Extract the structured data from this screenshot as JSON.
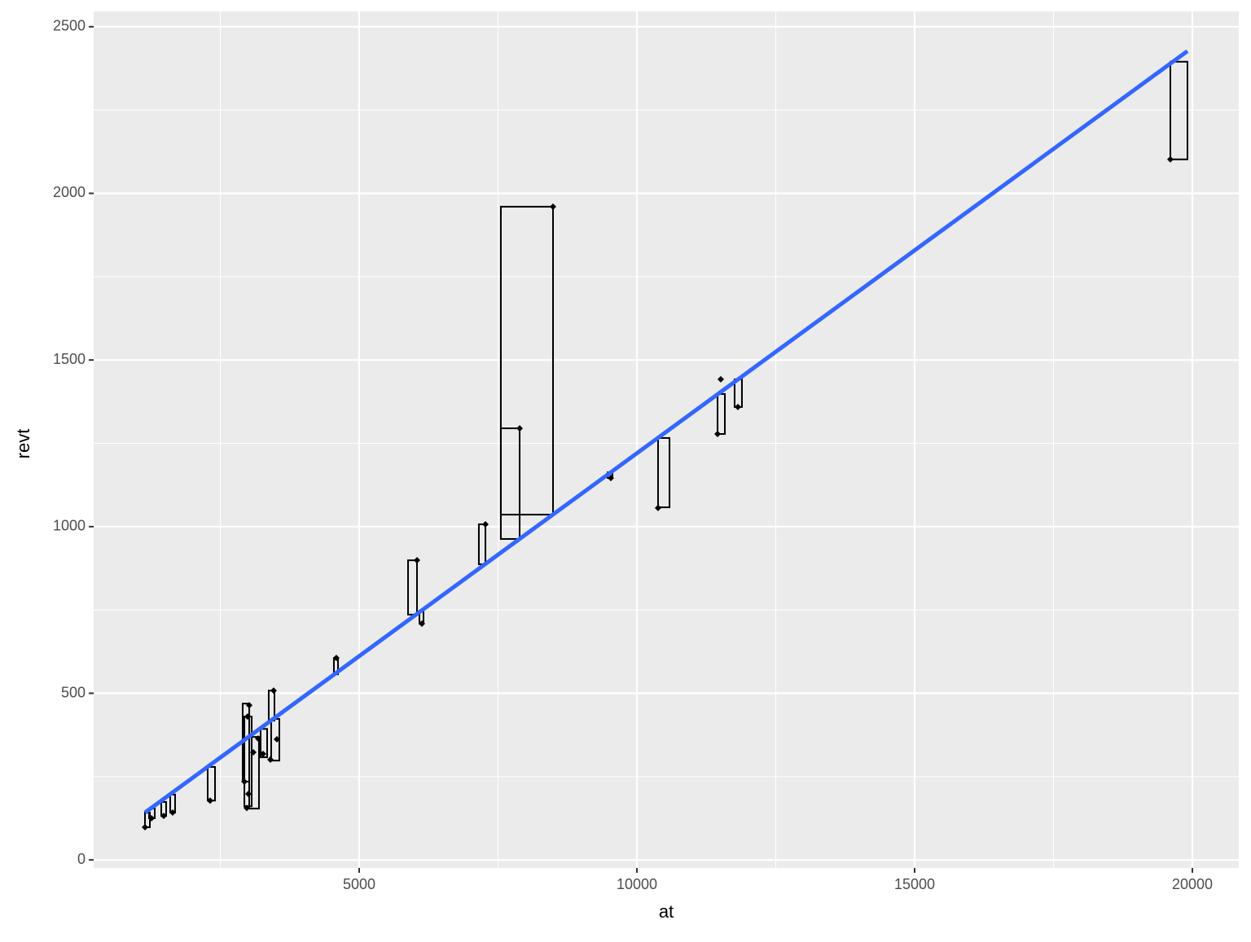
{
  "chart_data": {
    "type": "rect-scatter",
    "x_label": "at",
    "y_label": "revt",
    "xlim": [
      220,
      20836
    ],
    "ylim": [
      -24,
      2546
    ],
    "xticks": [
      5000,
      10000,
      15000,
      20000
    ],
    "yticks": [
      0,
      500,
      1000,
      1500,
      2000,
      2500
    ],
    "grid": true,
    "rect_color": "#000000",
    "point_color": "#000000",
    "line_color": "#3366ff",
    "rects": [
      {
        "xmin": 7551,
        "xmax": 8490,
        "ymin": 1036,
        "ymax": 1960
      },
      {
        "xmin": 7551,
        "xmax": 7889,
        "ymin": 963,
        "ymax": 1295
      },
      {
        "xmin": 19604,
        "xmax": 19912,
        "ymin": 2102,
        "ymax": 2395
      },
      {
        "xmin": 10381,
        "xmax": 10587,
        "ymin": 1058,
        "ymax": 1266
      },
      {
        "xmin": 11452,
        "xmax": 11584,
        "ymin": 1278,
        "ymax": 1398
      },
      {
        "xmin": 11759,
        "xmax": 11891,
        "ymin": 1359,
        "ymax": 1442
      },
      {
        "xmin": 5880,
        "xmax": 6041,
        "ymin": 736,
        "ymax": 899
      },
      {
        "xmin": 7155,
        "xmax": 7273,
        "ymin": 887,
        "ymax": 1007
      },
      {
        "xmin": 4545,
        "xmax": 4619,
        "ymin": 557,
        "ymax": 606
      },
      {
        "xmin": 6085,
        "xmax": 6158,
        "ymin": 709,
        "ymax": 748
      },
      {
        "xmin": 3372,
        "xmax": 3475,
        "ymin": 418,
        "ymax": 508
      },
      {
        "xmin": 3416,
        "xmax": 3563,
        "ymin": 298,
        "ymax": 423
      },
      {
        "xmin": 3226,
        "xmax": 3343,
        "ymin": 308,
        "ymax": 393
      },
      {
        "xmin": 3021,
        "xmax": 3196,
        "ymin": 154,
        "ymax": 369
      },
      {
        "xmin": 2903,
        "xmax": 3021,
        "ymin": 235,
        "ymax": 469
      },
      {
        "xmin": 2933,
        "xmax": 3065,
        "ymin": 161,
        "ymax": 430
      },
      {
        "xmin": 2273,
        "xmax": 2405,
        "ymin": 178,
        "ymax": 279
      },
      {
        "xmin": 1598,
        "xmax": 1686,
        "ymin": 142,
        "ymax": 196
      },
      {
        "xmin": 1437,
        "xmax": 1525,
        "ymin": 132,
        "ymax": 174
      },
      {
        "xmin": 1144,
        "xmax": 1232,
        "ymin": 98,
        "ymax": 142
      },
      {
        "xmin": 1217,
        "xmax": 1320,
        "ymin": 125,
        "ymax": 154
      },
      {
        "xmin": 9472,
        "xmax": 9560,
        "ymin": 1146,
        "ymax": 1163
      }
    ],
    "points": {
      "x": [
        1144,
        1261,
        1481,
        1642,
        2317,
        2933,
        2977,
        3006,
        3021,
        2991,
        3094,
        3182,
        3270,
        3402,
        3460,
        3519,
        4589,
        6041,
        6129,
        7273,
        7889,
        8490,
        9531,
        10381,
        11452,
        11510,
        11818,
        19604
      ],
      "y": [
        98,
        125,
        132,
        142,
        178,
        235,
        156,
        198,
        464,
        430,
        323,
        364,
        318,
        301,
        508,
        362,
        606,
        899,
        709,
        1007,
        1295,
        1960,
        1146,
        1056,
        1278,
        1442,
        1359,
        2102
      ]
    },
    "fit": {
      "x": [
        1144,
        19912
      ],
      "y": [
        142,
        2427
      ]
    }
  }
}
